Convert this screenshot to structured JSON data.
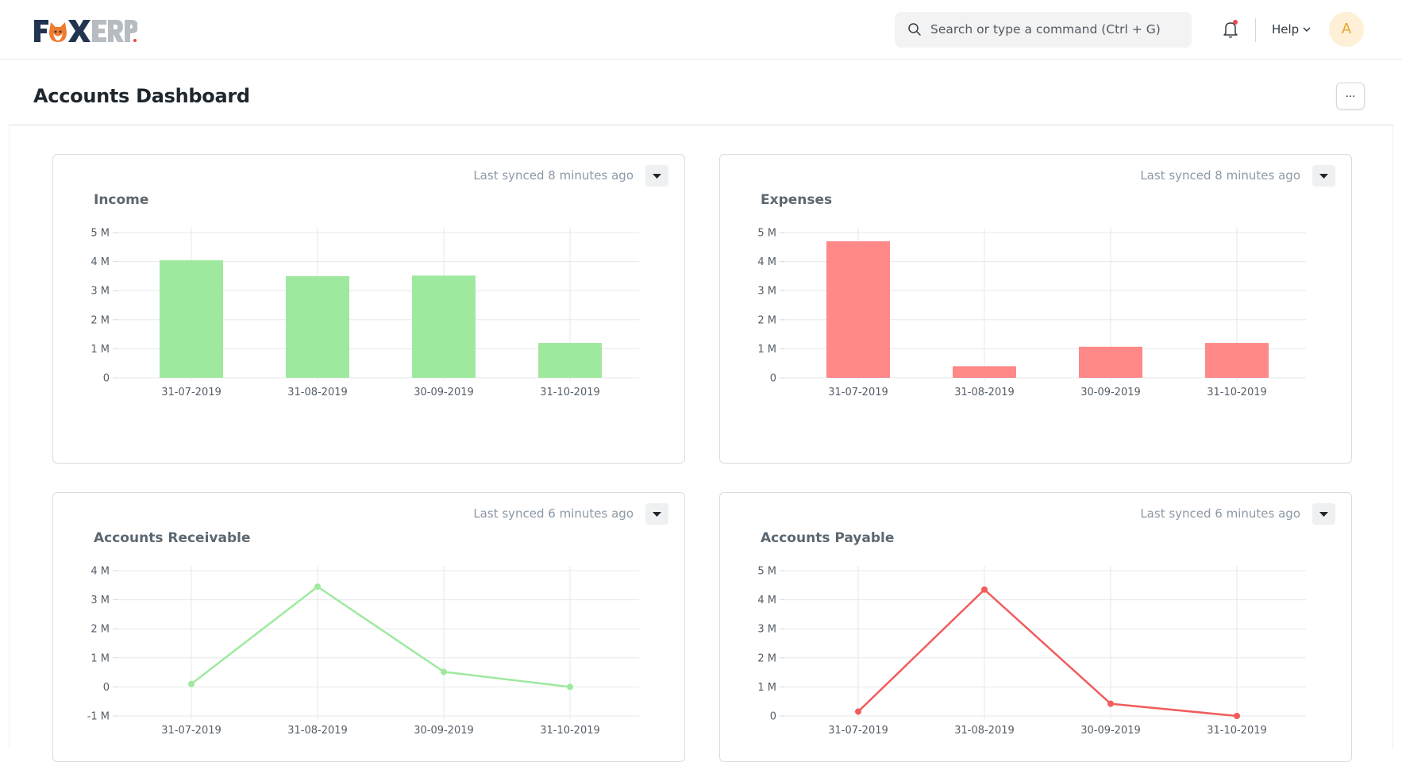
{
  "app": {
    "brand": "FOXERP",
    "search_placeholder": "Search or type a command (Ctrl + G)",
    "help_label": "Help",
    "avatar_initial": "A"
  },
  "page": {
    "title": "Accounts Dashboard",
    "more_label": "..."
  },
  "widgets": [
    {
      "title": "Income",
      "sync": "Last synced 8 minutes ago",
      "chart_data": {
        "type": "bar",
        "categories": [
          "31-07-2019",
          "31-08-2019",
          "30-09-2019",
          "31-10-2019"
        ],
        "values": [
          4050000,
          3500000,
          3520000,
          1200000
        ],
        "ylim": [
          0,
          5000000
        ],
        "yticks": [
          "0",
          "1 M",
          "2 M",
          "3 M",
          "4 M",
          "5 M"
        ],
        "color": "#9fe99f",
        "grid": true
      }
    },
    {
      "title": "Expenses",
      "sync": "Last synced 8 minutes ago",
      "chart_data": {
        "type": "bar",
        "categories": [
          "31-07-2019",
          "31-08-2019",
          "30-09-2019",
          "31-10-2019"
        ],
        "values": [
          4700000,
          400000,
          1070000,
          1200000
        ],
        "ylim": [
          0,
          5000000
        ],
        "yticks": [
          "0",
          "1 M",
          "2 M",
          "3 M",
          "4 M",
          "5 M"
        ],
        "color": "#ff8888",
        "grid": true
      }
    },
    {
      "title": "Accounts Receivable",
      "sync": "Last synced 6 minutes ago",
      "chart_data": {
        "type": "line",
        "categories": [
          "31-07-2019",
          "31-08-2019",
          "30-09-2019",
          "31-10-2019"
        ],
        "values": [
          100000,
          3450000,
          520000,
          0
        ],
        "ylim": [
          -1000000,
          4000000
        ],
        "yticks": [
          "-1 M",
          "0",
          "1 M",
          "2 M",
          "3 M",
          "4 M"
        ],
        "color": "#9fe99f",
        "grid": true
      }
    },
    {
      "title": "Accounts Payable",
      "sync": "Last synced 6 minutes ago",
      "chart_data": {
        "type": "line",
        "categories": [
          "31-07-2019",
          "31-08-2019",
          "30-09-2019",
          "31-10-2019"
        ],
        "values": [
          150000,
          4350000,
          420000,
          0
        ],
        "ylim": [
          0,
          5000000
        ],
        "yticks": [
          "0",
          "1 M",
          "2 M",
          "3 M",
          "4 M",
          "5 M"
        ],
        "color": "#f25c5c",
        "grid": true
      }
    }
  ]
}
